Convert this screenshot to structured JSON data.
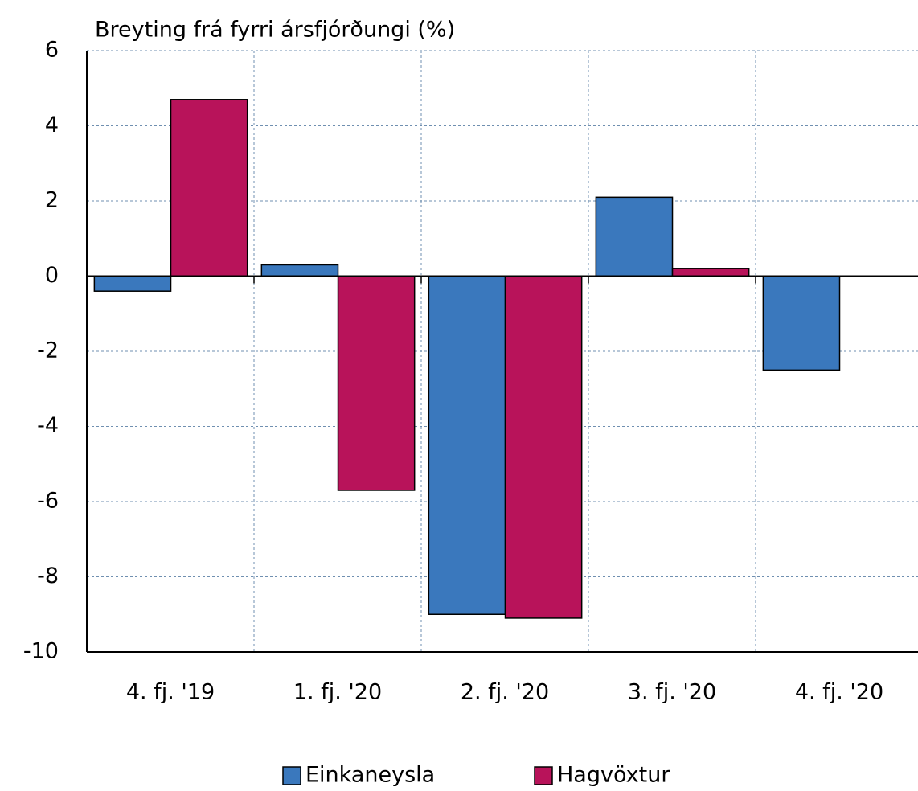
{
  "chart_data": {
    "type": "bar",
    "title": "Breyting frá fyrri ársfjórðungi (%)",
    "categories": [
      "4. fj. '19",
      "1. fj. '20",
      "2. fj. '20",
      "3. fj. '20",
      "4. fj. '20"
    ],
    "series": [
      {
        "name": "Einkaneysla",
        "color": "#3a78bd",
        "values": [
          -0.4,
          0.3,
          -9.0,
          2.1,
          -2.5
        ]
      },
      {
        "name": "Hagvöxtur",
        "color": "#b8135a",
        "values": [
          4.7,
          -5.7,
          -9.1,
          0.2,
          0.0
        ]
      }
    ],
    "ylim": [
      -10,
      6
    ],
    "yticks": [
      -10,
      -8,
      -6,
      -4,
      -2,
      0,
      2,
      4,
      6
    ],
    "grid": true,
    "legend": "bottom"
  }
}
